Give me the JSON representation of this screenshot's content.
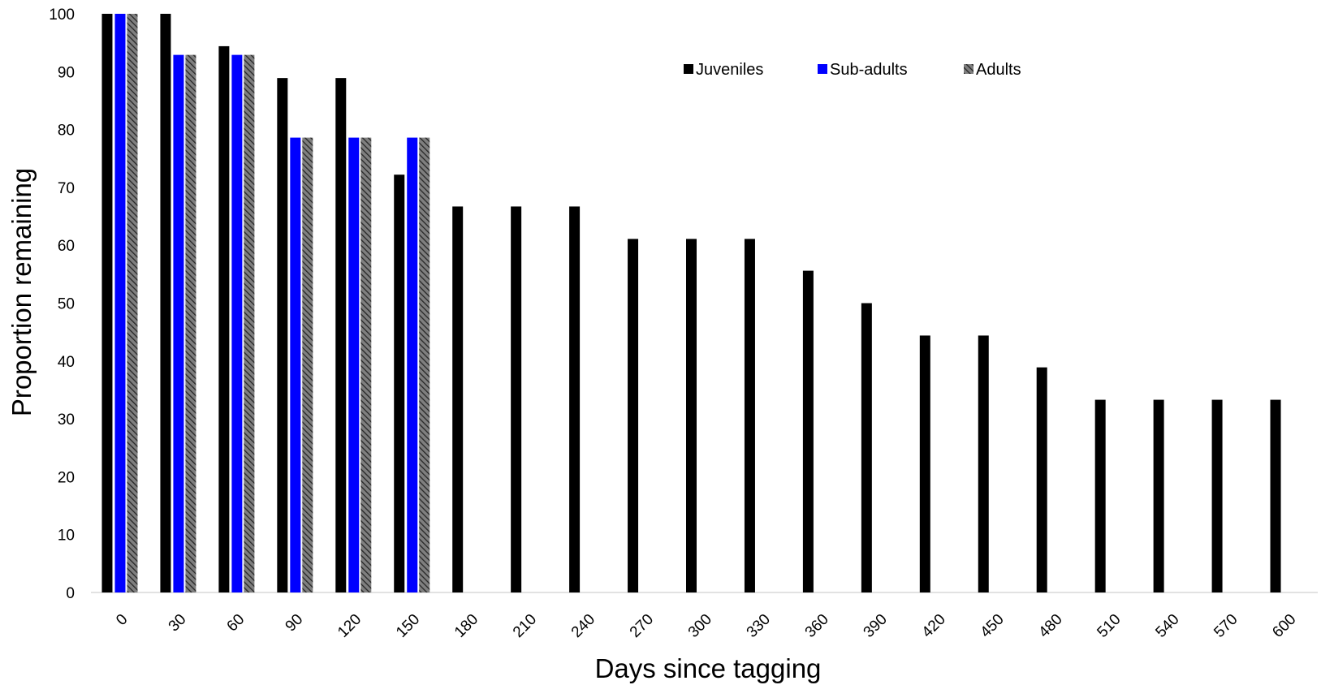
{
  "chart_data": {
    "type": "bar",
    "title": "",
    "xlabel": "Days since tagging",
    "ylabel": "Proportion remaining",
    "categories": [
      "0",
      "30",
      "60",
      "90",
      "120",
      "150",
      "180",
      "210",
      "240",
      "270",
      "300",
      "330",
      "360",
      "390",
      "420",
      "450",
      "480",
      "510",
      "540",
      "570",
      "600"
    ],
    "series": [
      {
        "name": "Juveniles",
        "color": "#000000",
        "pattern": "solid",
        "values": [
          100,
          100,
          94.4,
          88.9,
          88.9,
          72.2,
          66.7,
          66.7,
          66.7,
          61.1,
          61.1,
          61.1,
          55.6,
          50.0,
          44.4,
          44.4,
          38.9,
          33.3,
          33.3,
          33.3,
          33.3
        ]
      },
      {
        "name": "Sub-adults",
        "color": "#0000ff",
        "pattern": "solid",
        "values": [
          100,
          92.9,
          92.9,
          78.6,
          78.6,
          78.6,
          null,
          null,
          null,
          null,
          null,
          null,
          null,
          null,
          null,
          null,
          null,
          null,
          null,
          null,
          null
        ]
      },
      {
        "name": "Adults",
        "color": "#595959",
        "pattern": "diagonal-hatch",
        "values": [
          100,
          92.9,
          92.9,
          78.6,
          78.6,
          78.6,
          null,
          null,
          null,
          null,
          null,
          null,
          null,
          null,
          null,
          null,
          null,
          null,
          null,
          null,
          null
        ]
      }
    ],
    "ylim": [
      0,
      100
    ],
    "yticks": [
      0,
      10,
      20,
      30,
      40,
      50,
      60,
      70,
      80,
      90,
      100
    ],
    "grid": false,
    "legend_position": "top-center",
    "xtick_rotation": "-45"
  }
}
